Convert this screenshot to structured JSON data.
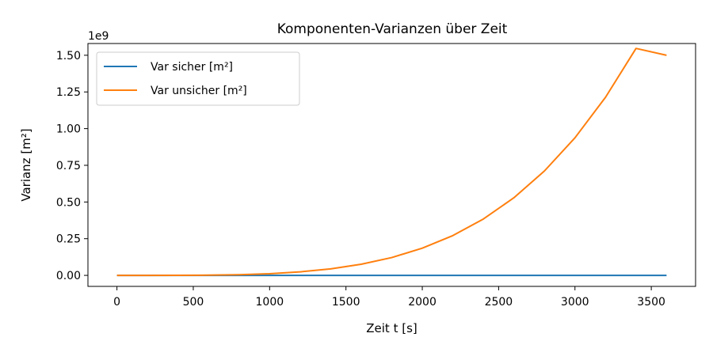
{
  "chart_data": {
    "type": "line",
    "title": "Komponenten-Varianzen über Zeit",
    "xlabel": "Zeit t [s]",
    "ylabel": "Varianz [m²]",
    "y_offset_label": "1e9",
    "xlim": [
      -190,
      3790
    ],
    "ylim": [
      -0.075,
      1.58
    ],
    "x_ticks": [
      0,
      500,
      1000,
      1500,
      2000,
      2500,
      3000,
      3500
    ],
    "x_tick_labels": [
      "0",
      "500",
      "1000",
      "1500",
      "2000",
      "2500",
      "3000",
      "3500"
    ],
    "y_ticks": [
      0,
      0.25,
      0.5,
      0.75,
      1.0,
      1.25,
      1.5
    ],
    "y_tick_labels": [
      "0.00",
      "0.25",
      "0.50",
      "0.75",
      "1.00",
      "1.25",
      "1.50"
    ],
    "grid": false,
    "legend_position": "top-left",
    "series": [
      {
        "name": "Var sicher [m²]",
        "color": "#1f77b4",
        "x": [
          0,
          400,
          800,
          1200,
          1600,
          2000,
          2400,
          2800,
          3200,
          3600
        ],
        "y": [
          0,
          0,
          0,
          0,
          0,
          0,
          0,
          0,
          0,
          0.0001
        ]
      },
      {
        "name": "Var unsicher [m²]",
        "color": "#ff7f0e",
        "x": [
          0,
          200,
          400,
          600,
          800,
          1000,
          1200,
          1400,
          1600,
          1800,
          2000,
          2200,
          2400,
          2600,
          2800,
          3000,
          3200,
          3400,
          3600
        ],
        "y": [
          0,
          2e-05,
          0.0003,
          0.0015,
          0.0047,
          0.0116,
          0.024,
          0.0445,
          0.0758,
          0.1215,
          0.1852,
          0.2711,
          0.384,
          0.5289,
          0.7114,
          0.9375,
          1.2136,
          1.5465,
          1.5
        ]
      }
    ]
  }
}
